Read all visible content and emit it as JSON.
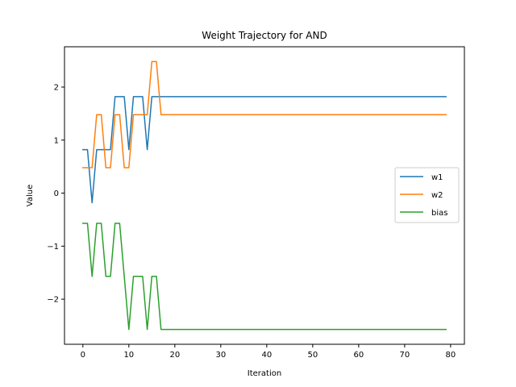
{
  "chart_data": {
    "type": "line",
    "title": "Weight Trajectory for AND",
    "xlabel": "Iteration",
    "ylabel": "Value",
    "xlim": [
      -4,
      83
    ],
    "ylim": [
      -2.85,
      2.76
    ],
    "xticks": [
      0,
      10,
      20,
      30,
      40,
      50,
      60,
      70,
      80
    ],
    "yticks": [
      -2,
      -1,
      0,
      1,
      2
    ],
    "legend_position": "center-right",
    "grid": false,
    "x": [
      0,
      1,
      2,
      3,
      4,
      5,
      6,
      7,
      8,
      9,
      10,
      11,
      12,
      13,
      14,
      15,
      16,
      17,
      18,
      19,
      20,
      21,
      22,
      23,
      24,
      25,
      26,
      27,
      28,
      29,
      30,
      31,
      32,
      33,
      34,
      35,
      36,
      37,
      38,
      39,
      40,
      41,
      42,
      43,
      44,
      45,
      46,
      47,
      48,
      49,
      50,
      51,
      52,
      53,
      54,
      55,
      56,
      57,
      58,
      59,
      60,
      61,
      62,
      63,
      64,
      65,
      66,
      67,
      68,
      69,
      70,
      71,
      72,
      73,
      74,
      75,
      76,
      77,
      78,
      79
    ],
    "series": [
      {
        "name": "w1",
        "color": "#1f77b4",
        "values": [
          0.82,
          0.82,
          -0.18,
          0.82,
          0.82,
          0.82,
          0.82,
          1.82,
          1.82,
          1.82,
          0.82,
          1.82,
          1.82,
          1.82,
          0.82,
          1.82,
          1.82,
          1.82,
          1.82,
          1.82,
          1.82,
          1.82,
          1.82,
          1.82,
          1.82,
          1.82,
          1.82,
          1.82,
          1.82,
          1.82,
          1.82,
          1.82,
          1.82,
          1.82,
          1.82,
          1.82,
          1.82,
          1.82,
          1.82,
          1.82,
          1.82,
          1.82,
          1.82,
          1.82,
          1.82,
          1.82,
          1.82,
          1.82,
          1.82,
          1.82,
          1.82,
          1.82,
          1.82,
          1.82,
          1.82,
          1.82,
          1.82,
          1.82,
          1.82,
          1.82,
          1.82,
          1.82,
          1.82,
          1.82,
          1.82,
          1.82,
          1.82,
          1.82,
          1.82,
          1.82,
          1.82,
          1.82,
          1.82,
          1.82,
          1.82,
          1.82,
          1.82,
          1.82,
          1.82,
          1.82
        ]
      },
      {
        "name": "w2",
        "color": "#ff7f0e",
        "values": [
          0.48,
          0.48,
          0.48,
          1.48,
          1.48,
          0.48,
          0.48,
          1.48,
          1.48,
          0.48,
          0.48,
          1.48,
          1.48,
          1.48,
          1.48,
          2.48,
          2.48,
          1.48,
          1.48,
          1.48,
          1.48,
          1.48,
          1.48,
          1.48,
          1.48,
          1.48,
          1.48,
          1.48,
          1.48,
          1.48,
          1.48,
          1.48,
          1.48,
          1.48,
          1.48,
          1.48,
          1.48,
          1.48,
          1.48,
          1.48,
          1.48,
          1.48,
          1.48,
          1.48,
          1.48,
          1.48,
          1.48,
          1.48,
          1.48,
          1.48,
          1.48,
          1.48,
          1.48,
          1.48,
          1.48,
          1.48,
          1.48,
          1.48,
          1.48,
          1.48,
          1.48,
          1.48,
          1.48,
          1.48,
          1.48,
          1.48,
          1.48,
          1.48,
          1.48,
          1.48,
          1.48,
          1.48,
          1.48,
          1.48,
          1.48,
          1.48,
          1.48,
          1.48,
          1.48,
          1.48
        ]
      },
      {
        "name": "bias",
        "color": "#2ca02c",
        "values": [
          -0.57,
          -0.57,
          -1.57,
          -0.57,
          -0.57,
          -1.57,
          -1.57,
          -0.57,
          -0.57,
          -1.57,
          -2.57,
          -1.57,
          -1.57,
          -1.57,
          -2.57,
          -1.57,
          -1.57,
          -2.57,
          -2.57,
          -2.57,
          -2.57,
          -2.57,
          -2.57,
          -2.57,
          -2.57,
          -2.57,
          -2.57,
          -2.57,
          -2.57,
          -2.57,
          -2.57,
          -2.57,
          -2.57,
          -2.57,
          -2.57,
          -2.57,
          -2.57,
          -2.57,
          -2.57,
          -2.57,
          -2.57,
          -2.57,
          -2.57,
          -2.57,
          -2.57,
          -2.57,
          -2.57,
          -2.57,
          -2.57,
          -2.57,
          -2.57,
          -2.57,
          -2.57,
          -2.57,
          -2.57,
          -2.57,
          -2.57,
          -2.57,
          -2.57,
          -2.57,
          -2.57,
          -2.57,
          -2.57,
          -2.57,
          -2.57,
          -2.57,
          -2.57,
          -2.57,
          -2.57,
          -2.57,
          -2.57,
          -2.57,
          -2.57,
          -2.57,
          -2.57,
          -2.57,
          -2.57,
          -2.57,
          -2.57,
          -2.57
        ]
      }
    ]
  }
}
